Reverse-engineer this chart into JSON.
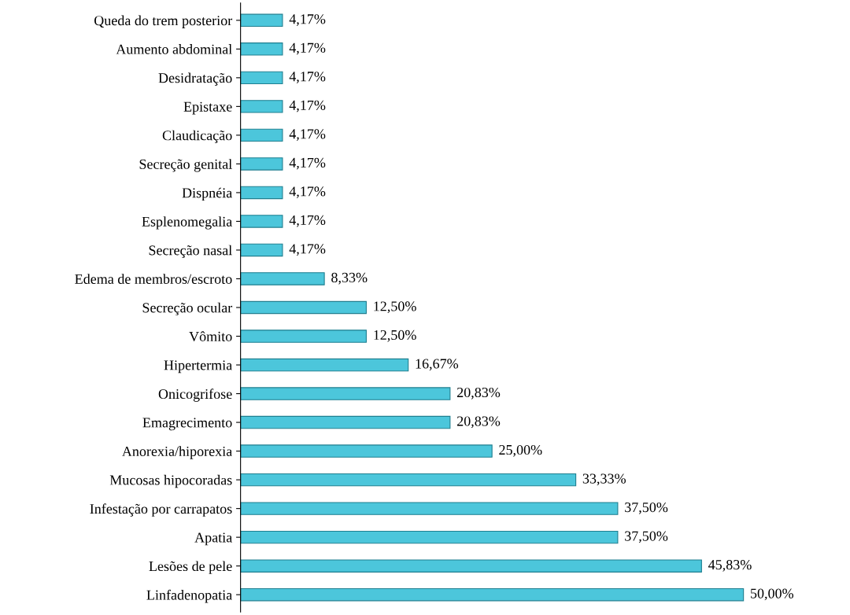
{
  "chart_data": {
    "type": "bar",
    "orientation": "horizontal",
    "categories": [
      "Queda do trem posterior",
      "Aumento abdominal",
      "Desidratação",
      "Epistaxe",
      "Claudicação",
      "Secreção genital",
      "Dispnéia",
      "Esplenomegalia",
      "Secreção nasal",
      "Edema de membros/escroto",
      "Secreção ocular",
      "Vômito",
      "Hipertermia",
      "Onicogrifose",
      "Emagrecimento",
      "Anorexia/hiporexia",
      "Mucosas hipocoradas",
      "Infestação por carrapatos",
      "Apatia",
      "Lesões de pele",
      "Linfadenopatia"
    ],
    "values": [
      4.17,
      4.17,
      4.17,
      4.17,
      4.17,
      4.17,
      4.17,
      4.17,
      4.17,
      8.33,
      12.5,
      12.5,
      16.67,
      20.83,
      20.83,
      25.0,
      33.33,
      37.5,
      37.5,
      45.83,
      50.0
    ],
    "value_labels": [
      "4,17%",
      "4,17%",
      "4,17%",
      "4,17%",
      "4,17%",
      "4,17%",
      "4,17%",
      "4,17%",
      "4,17%",
      "8,33%",
      "12,50%",
      "12,50%",
      "16,67%",
      "20,83%",
      "20,83%",
      "25,00%",
      "33,33%",
      "37,50%",
      "37,50%",
      "45,83%",
      "50,00%"
    ],
    "color": "#4cc6db",
    "grid": false,
    "legend": false
  }
}
